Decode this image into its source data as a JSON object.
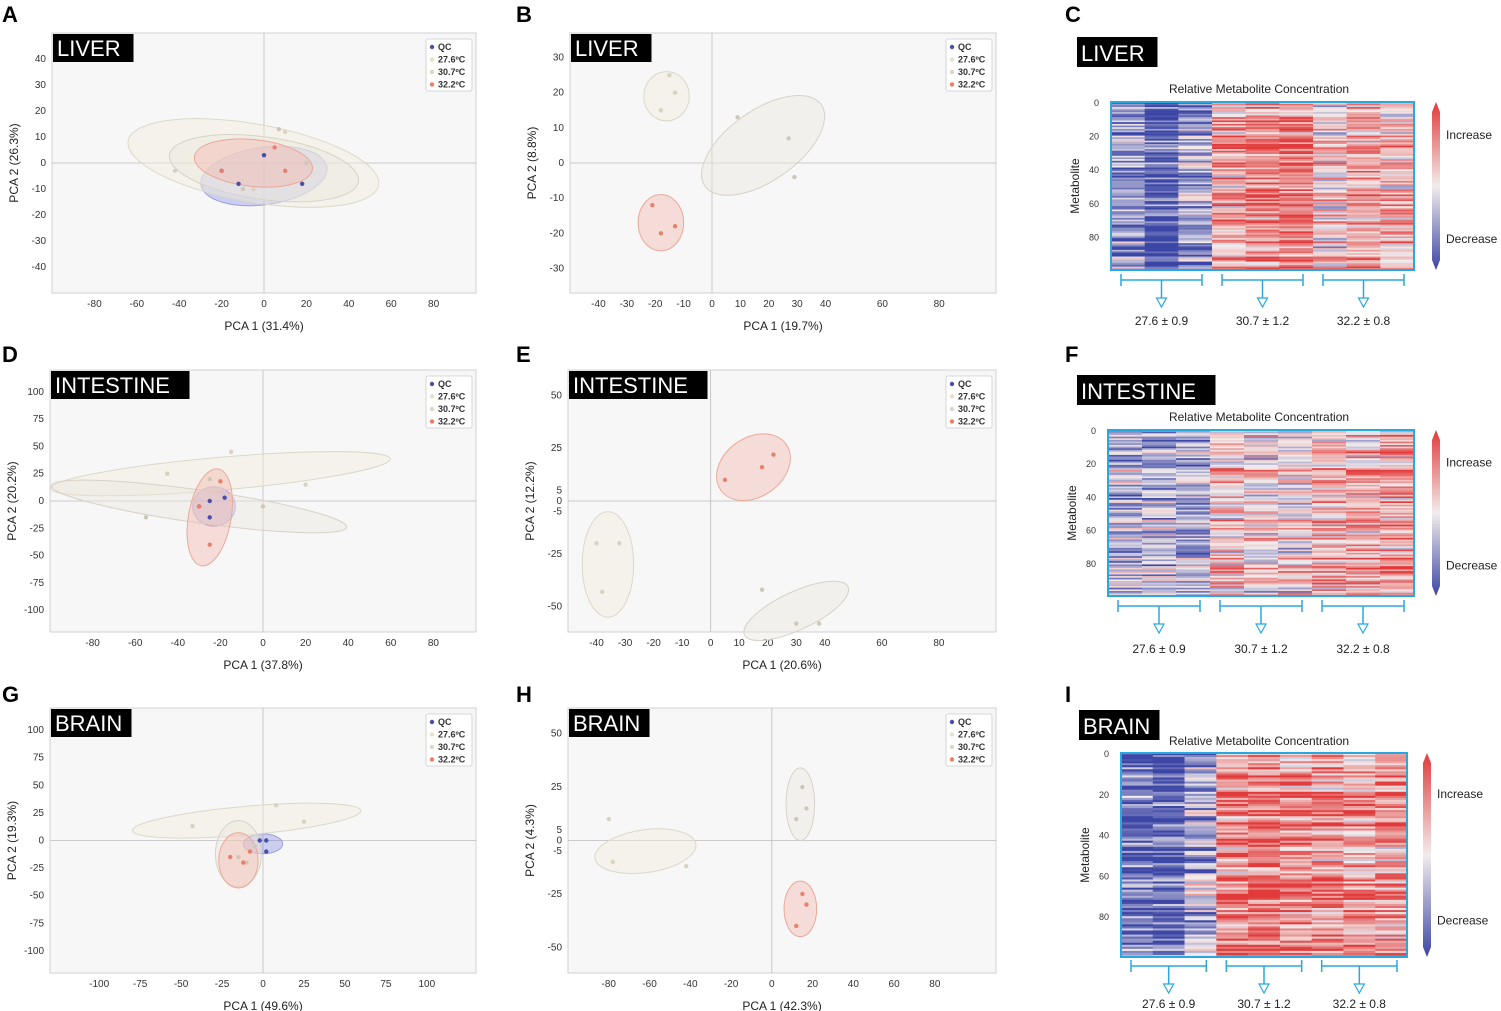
{
  "panel_letters": [
    "A",
    "B",
    "C",
    "D",
    "E",
    "F",
    "G",
    "H",
    "I"
  ],
  "colors": {
    "qc": "#4a4ea8",
    "t276": "#e8e4d4",
    "t307": "#d8d0c0",
    "t322": "#e8806a",
    "heat_low": "#3b46a6",
    "heat_mid": "#f2ecec",
    "heat_high": "#e23a3a",
    "frame": "#29a8e0"
  },
  "legend": {
    "items": [
      {
        "label": "QC",
        "color": "#4a4ea8"
      },
      {
        "label": "27.6ºC",
        "color": "#e6e0cc"
      },
      {
        "label": "30.7ºC",
        "color": "#dcd6c8"
      },
      {
        "label": "32.2ºC",
        "color": "#e8806a"
      }
    ]
  },
  "heatmap_common": {
    "title": "Relative Metabolite Concentration",
    "ylabel": "Metabolite",
    "increase": "Increase",
    "decrease": "Decrease",
    "yticks": [
      "0",
      "20",
      "40",
      "60",
      "80"
    ],
    "groups": [
      "27.6 ± 0.9",
      "30.7 ± 1.2",
      "32.2 ± 0.8"
    ]
  },
  "chart_data": [
    {
      "panel": "A",
      "type": "scatter",
      "tissue": "LIVER",
      "xlabel": "PCA 1 (31.4%)",
      "ylabel": "PCA 2 (26.3%)",
      "xlim": [
        -100,
        100
      ],
      "ylim": [
        -50,
        50
      ],
      "xticks": [
        -80,
        -60,
        -40,
        -20,
        0,
        20,
        40,
        60,
        80
      ],
      "yticks": [
        -40,
        -30,
        -20,
        -10,
        0,
        10,
        20,
        30,
        40
      ],
      "series": [
        {
          "name": "QC",
          "points": [
            [
              0,
              3
            ],
            [
              -12,
              -8
            ],
            [
              18,
              -8
            ],
            [
              -20,
              -3
            ]
          ],
          "ellipse": [
            0,
            -5,
            30,
            11,
            -8
          ]
        },
        {
          "name": "27.6ºC",
          "points": [
            [
              -42,
              -3
            ],
            [
              10,
              12
            ],
            [
              -5,
              -10
            ]
          ],
          "ellipse": [
            -5,
            0,
            60,
            15,
            10
          ]
        },
        {
          "name": "30.7ºC",
          "points": [
            [
              7,
              13
            ],
            [
              -10,
              -10
            ],
            [
              20,
              0
            ]
          ],
          "ellipse": [
            0,
            -2,
            45,
            12,
            8
          ]
        },
        {
          "name": "32.2ºC",
          "points": [
            [
              -20,
              -3
            ],
            [
              5,
              6
            ],
            [
              10,
              -3
            ]
          ],
          "ellipse": [
            -5,
            0,
            28,
            9,
            6
          ]
        }
      ]
    },
    {
      "panel": "B",
      "type": "scatter",
      "tissue": "LIVER",
      "xlabel": "PCA 1 (19.7%)",
      "ylabel": "PCA 2 (8.8%)",
      "xlim": [
        -50,
        100
      ],
      "ylim": [
        -37,
        37
      ],
      "xticks": [
        -40,
        -30,
        -20,
        -10,
        0,
        10,
        20,
        30,
        40,
        60,
        80
      ],
      "yticks": [
        -30,
        -20,
        -10,
        0,
        10,
        20,
        30
      ],
      "series": [
        {
          "name": "27.6ºC",
          "points": [
            [
              -13,
              20
            ],
            [
              -18,
              15
            ],
            [
              -15,
              25
            ]
          ],
          "ellipse": [
            -16,
            19,
            8,
            7,
            0
          ]
        },
        {
          "name": "30.7ºC",
          "points": [
            [
              9,
              13
            ],
            [
              27,
              7
            ],
            [
              29,
              -4
            ]
          ],
          "ellipse": [
            18,
            5,
            25,
            10,
            -35
          ]
        },
        {
          "name": "32.2ºC",
          "points": [
            [
              -21,
              -12
            ],
            [
              -18,
              -20
            ],
            [
              -13,
              -18
            ]
          ],
          "ellipse": [
            -18,
            -17,
            8,
            8,
            0
          ]
        }
      ]
    },
    {
      "panel": "D",
      "type": "scatter",
      "tissue": "INTESTINE",
      "xlabel": "PCA 1 (37.8%)",
      "ylabel": "PCA 2 (20.2%)",
      "xlim": [
        -100,
        100
      ],
      "ylim": [
        -120,
        120
      ],
      "xticks": [
        -80,
        -60,
        -40,
        -20,
        0,
        20,
        40,
        60,
        80
      ],
      "yticks": [
        -100,
        -75,
        -50,
        -25,
        0,
        25,
        50,
        75,
        100
      ],
      "series": [
        {
          "name": "QC",
          "points": [
            [
              -25,
              0
            ],
            [
              -18,
              3
            ],
            [
              -25,
              -15
            ],
            [
              -30,
              -5
            ]
          ],
          "ellipse": [
            -23,
            -5,
            10,
            18,
            0
          ]
        },
        {
          "name": "27.6ºC",
          "points": [
            [
              -45,
              25
            ],
            [
              -15,
              45
            ],
            [
              20,
              15
            ]
          ],
          "ellipse": [
            -20,
            25,
            80,
            15,
            -5
          ]
        },
        {
          "name": "30.7ºC",
          "points": [
            [
              -55,
              -15
            ],
            [
              -25,
              20
            ],
            [
              0,
              -5
            ]
          ],
          "ellipse": [
            -30,
            -5,
            70,
            15,
            8
          ]
        },
        {
          "name": "32.2ºC",
          "points": [
            [
              -20,
              18
            ],
            [
              -25,
              -40
            ],
            [
              -30,
              -5
            ]
          ],
          "ellipse": [
            -25,
            -15,
            10,
            45,
            10
          ]
        }
      ]
    },
    {
      "panel": "E",
      "type": "scatter",
      "tissue": "INTESTINE",
      "xlabel": "PCA 1 (20.6%)",
      "ylabel": "PCA 2 (12.2%)",
      "xlim": [
        -50,
        100
      ],
      "ylim": [
        -62,
        62
      ],
      "xticks": [
        -40,
        -30,
        -20,
        -10,
        0,
        10,
        20,
        30,
        40,
        60,
        80
      ],
      "yticks": [
        -50,
        -25,
        -5,
        0,
        5,
        25,
        50
      ],
      "series": [
        {
          "name": "27.6ºC",
          "points": [
            [
              -40,
              -20
            ],
            [
              -38,
              -43
            ],
            [
              -32,
              -20
            ]
          ],
          "ellipse": [
            -36,
            -30,
            9,
            25,
            0
          ]
        },
        {
          "name": "30.7ºC",
          "points": [
            [
              18,
              -42
            ],
            [
              30,
              -58
            ],
            [
              38,
              -58
            ]
          ],
          "ellipse": [
            30,
            -52,
            20,
            9,
            -25
          ]
        },
        {
          "name": "32.2ºC",
          "points": [
            [
              5,
              10
            ],
            [
              18,
              16
            ],
            [
              22,
              22
            ]
          ],
          "ellipse": [
            15,
            16,
            14,
            14,
            -35
          ]
        }
      ]
    },
    {
      "panel": "G",
      "type": "scatter",
      "tissue": "BRAIN",
      "xlabel": "PCA 1 (49.6%)",
      "ylabel": "PCA 2 (19.3%)",
      "xlim": [
        -130,
        130
      ],
      "ylim": [
        -120,
        120
      ],
      "xticks": [
        -100,
        -75,
        -50,
        -25,
        0,
        25,
        50,
        75,
        100
      ],
      "yticks": [
        -100,
        -75,
        -50,
        -25,
        0,
        25,
        50,
        75,
        100
      ],
      "series": [
        {
          "name": "QC",
          "points": [
            [
              -2,
              0
            ],
            [
              2,
              0
            ],
            [
              2,
              -10
            ]
          ],
          "ellipse": [
            0,
            -3,
            12,
            9,
            0
          ]
        },
        {
          "name": "27.6ºC",
          "points": [
            [
              -43,
              13
            ],
            [
              8,
              32
            ],
            [
              25,
              17
            ]
          ],
          "ellipse": [
            -10,
            18,
            70,
            13,
            -5
          ]
        },
        {
          "name": "30.7ºC",
          "points": [
            [
              -15,
              -15
            ],
            [
              -10,
              -20
            ],
            [
              -5,
              -5
            ]
          ],
          "ellipse": [
            -15,
            -12,
            14,
            30,
            0
          ]
        },
        {
          "name": "32.2ºC",
          "points": [
            [
              -20,
              -15
            ],
            [
              -12,
              -20
            ],
            [
              -8,
              -10
            ]
          ],
          "ellipse": [
            -15,
            -18,
            12,
            25,
            0
          ]
        }
      ]
    },
    {
      "panel": "H",
      "type": "scatter",
      "tissue": "BRAIN",
      "xlabel": "PCA 1 (42.3%)",
      "ylabel": "PCA 2 (4.3%)",
      "xlim": [
        -100,
        110
      ],
      "ylim": [
        -62,
        62
      ],
      "xticks": [
        -80,
        -60,
        -40,
        -20,
        0,
        20,
        40,
        60,
        80
      ],
      "yticks": [
        -50,
        -25,
        -5,
        0,
        5,
        25,
        50
      ],
      "series": [
        {
          "name": "27.6ºC",
          "points": [
            [
              -80,
              10
            ],
            [
              -78,
              -10
            ],
            [
              -42,
              -12
            ]
          ],
          "ellipse": [
            -62,
            -5,
            25,
            10,
            -8
          ]
        },
        {
          "name": "30.7ºC",
          "points": [
            [
              15,
              25
            ],
            [
              17,
              15
            ],
            [
              12,
              10
            ]
          ],
          "ellipse": [
            14,
            17,
            7,
            17,
            0
          ]
        },
        {
          "name": "32.2ºC",
          "points": [
            [
              15,
              -25
            ],
            [
              17,
              -30
            ],
            [
              12,
              -40
            ]
          ],
          "ellipse": [
            14,
            -32,
            8,
            13,
            0
          ]
        }
      ]
    },
    {
      "panel": "C",
      "type": "heatmap",
      "tissue": "LIVER",
      "seed": 11,
      "bias": [
        -0.55,
        -0.95,
        -0.45,
        0.35,
        0.5,
        0.6,
        0.1,
        0.3,
        0.25
      ],
      "rows": 100
    },
    {
      "panel": "F",
      "type": "heatmap",
      "tissue": "INTESTINE",
      "seed": 23,
      "bias": [
        -0.3,
        -0.25,
        -0.35,
        0.15,
        0.1,
        0.05,
        0.35,
        0.4,
        0.45
      ],
      "rows": 100
    },
    {
      "panel": "I",
      "type": "heatmap",
      "tissue": "BRAIN",
      "seed": 37,
      "bias": [
        -0.8,
        -0.85,
        -0.35,
        0.55,
        0.6,
        0.5,
        0.45,
        0.4,
        0.45
      ],
      "rows": 100
    }
  ]
}
